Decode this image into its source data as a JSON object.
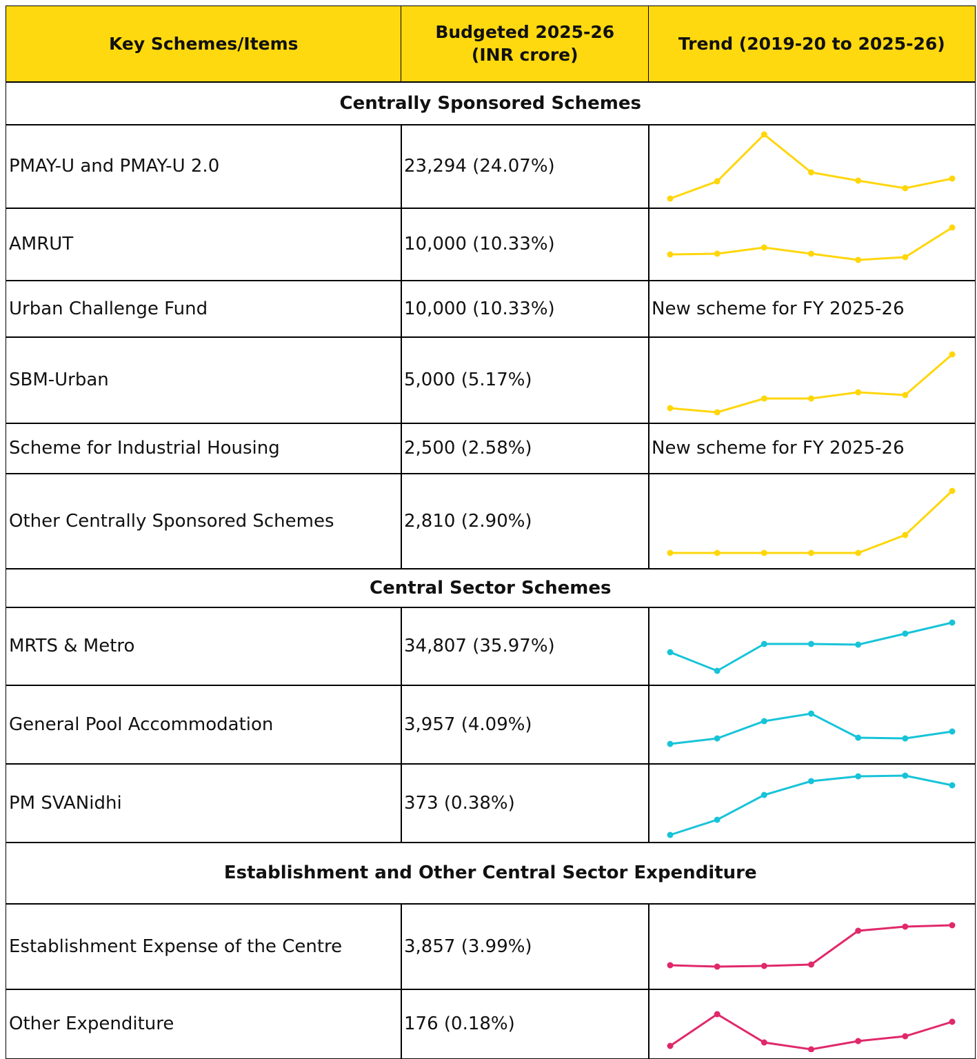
{
  "header": [
    "Key Schemes/Items",
    "Budgeted 2025-26 (INR crore)",
    "Trend (2019-20 to 2025-26)"
  ],
  "sections": [
    {
      "title": "Centrally Sponsored Schemes",
      "color": "#FFD60A",
      "rows": [
        {
          "item": "PMAY-U and PMAY-U 2.0",
          "budget": "23,294 (24.07%)",
          "trend": [
            3,
            28,
            96,
            41,
            29,
            18,
            32
          ]
        },
        {
          "item": "AMRUT",
          "budget": "10,000 (10.33%)",
          "trend": [
            27,
            28,
            37,
            28,
            19,
            23,
            66
          ]
        },
        {
          "item": "Urban Challenge Fund",
          "budget": "10,000 (10.33%)",
          "note": "New scheme for FY 2025-26"
        },
        {
          "item": "SBM-Urban",
          "budget": "5,000 (5.17%)",
          "trend": [
            11,
            5,
            25,
            25,
            34,
            30,
            89
          ]
        },
        {
          "item": "Scheme for Industrial Housing",
          "budget": "2,500 (2.58%)",
          "note": "New scheme for FY 2025-26"
        },
        {
          "item": "Other Centrally Sponsored Schemes",
          "budget": "2,810 (2.90%)",
          "trend": [
            12,
            12,
            12,
            12,
            12,
            38,
            102
          ]
        }
      ]
    },
    {
      "title": "Central Sector Schemes",
      "color": "#17C3D8",
      "rows": [
        {
          "item": "MRTS & Metro",
          "budget": "34,807 (35.97%)",
          "trend": [
            37,
            10,
            49,
            49,
            48,
            64,
            80
          ]
        },
        {
          "item": "General Pool Accommodation",
          "budget": "3,957 (4.09%)",
          "trend": [
            18,
            26,
            51,
            62,
            27,
            26,
            36
          ]
        },
        {
          "item": "PM SVANidhi",
          "budget": "373 (0.38%)",
          "trend": [
            0,
            22,
            58,
            78,
            85,
            86,
            72
          ]
        }
      ]
    },
    {
      "title": "Establishment and Other Central Sector Expenditure",
      "color": "#E0286A",
      "rows": [
        {
          "item": "Establishment Expense of the Centre",
          "budget": "3,857 (3.99%)",
          "trend": [
            24,
            22,
            23,
            25,
            74,
            80,
            82
          ]
        },
        {
          "item": "Other Expenditure",
          "budget": "176 (0.18%)",
          "trend": [
            7,
            53,
            12,
            2,
            14,
            21,
            42
          ]
        }
      ]
    }
  ]
}
